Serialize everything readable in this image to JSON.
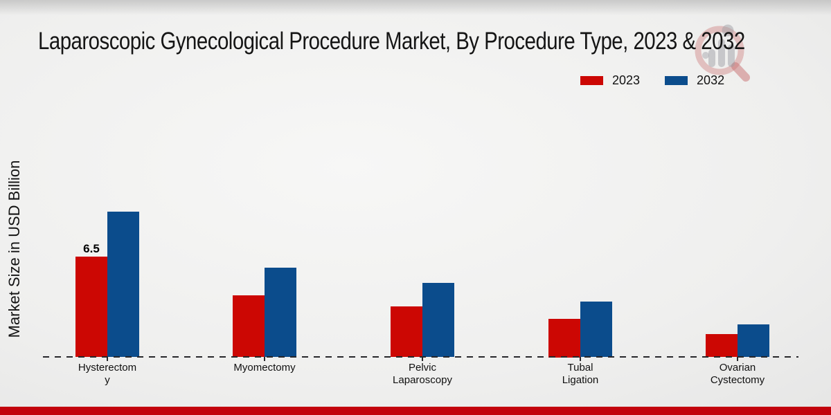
{
  "page": {
    "title": "Laparoscopic Gynecological Procedure Market, By Procedure Type, 2023 & 2032"
  },
  "legend": {
    "items": [
      {
        "label": "2023",
        "color": "#cc0703"
      },
      {
        "label": "2032",
        "color": "#0b4c8c"
      }
    ]
  },
  "watermark": {
    "name": "market-research-future-logo"
  },
  "footer": {
    "accent_color": "#c3030d"
  },
  "chart_data": {
    "type": "bar",
    "title": "Laparoscopic Gynecological Procedure Market, By Procedure Type, 2023 & 2032",
    "ylabel": "Market Size in USD Billion",
    "xlabel": "",
    "categories": [
      "Hysterectomy",
      "Myomectomy",
      "Pelvic Laparoscopy",
      "Tubal Ligation",
      "Ovarian Cystectomy"
    ],
    "tick_label_lines": [
      [
        "Hysterectom",
        "y"
      ],
      [
        "Myomectomy"
      ],
      [
        "Pelvic",
        "Laparoscopy"
      ],
      [
        "Tubal",
        "Ligation"
      ],
      [
        "Ovarian",
        "Cystectomy"
      ]
    ],
    "series": [
      {
        "name": "2023",
        "color": "#cc0703",
        "values": [
          6.5,
          4.0,
          3.3,
          2.5,
          1.5
        ]
      },
      {
        "name": "2032",
        "color": "#0b4c8c",
        "values": [
          9.4,
          5.8,
          4.8,
          3.6,
          2.1
        ]
      }
    ],
    "annotations": [
      {
        "series": "2023",
        "category": "Hysterectomy",
        "text": "6.5"
      }
    ],
    "ylim": [
      0,
      10
    ],
    "grid": false,
    "y_axis_ticks_visible": false,
    "legend_position": "top-right",
    "baseline": "dashed"
  }
}
